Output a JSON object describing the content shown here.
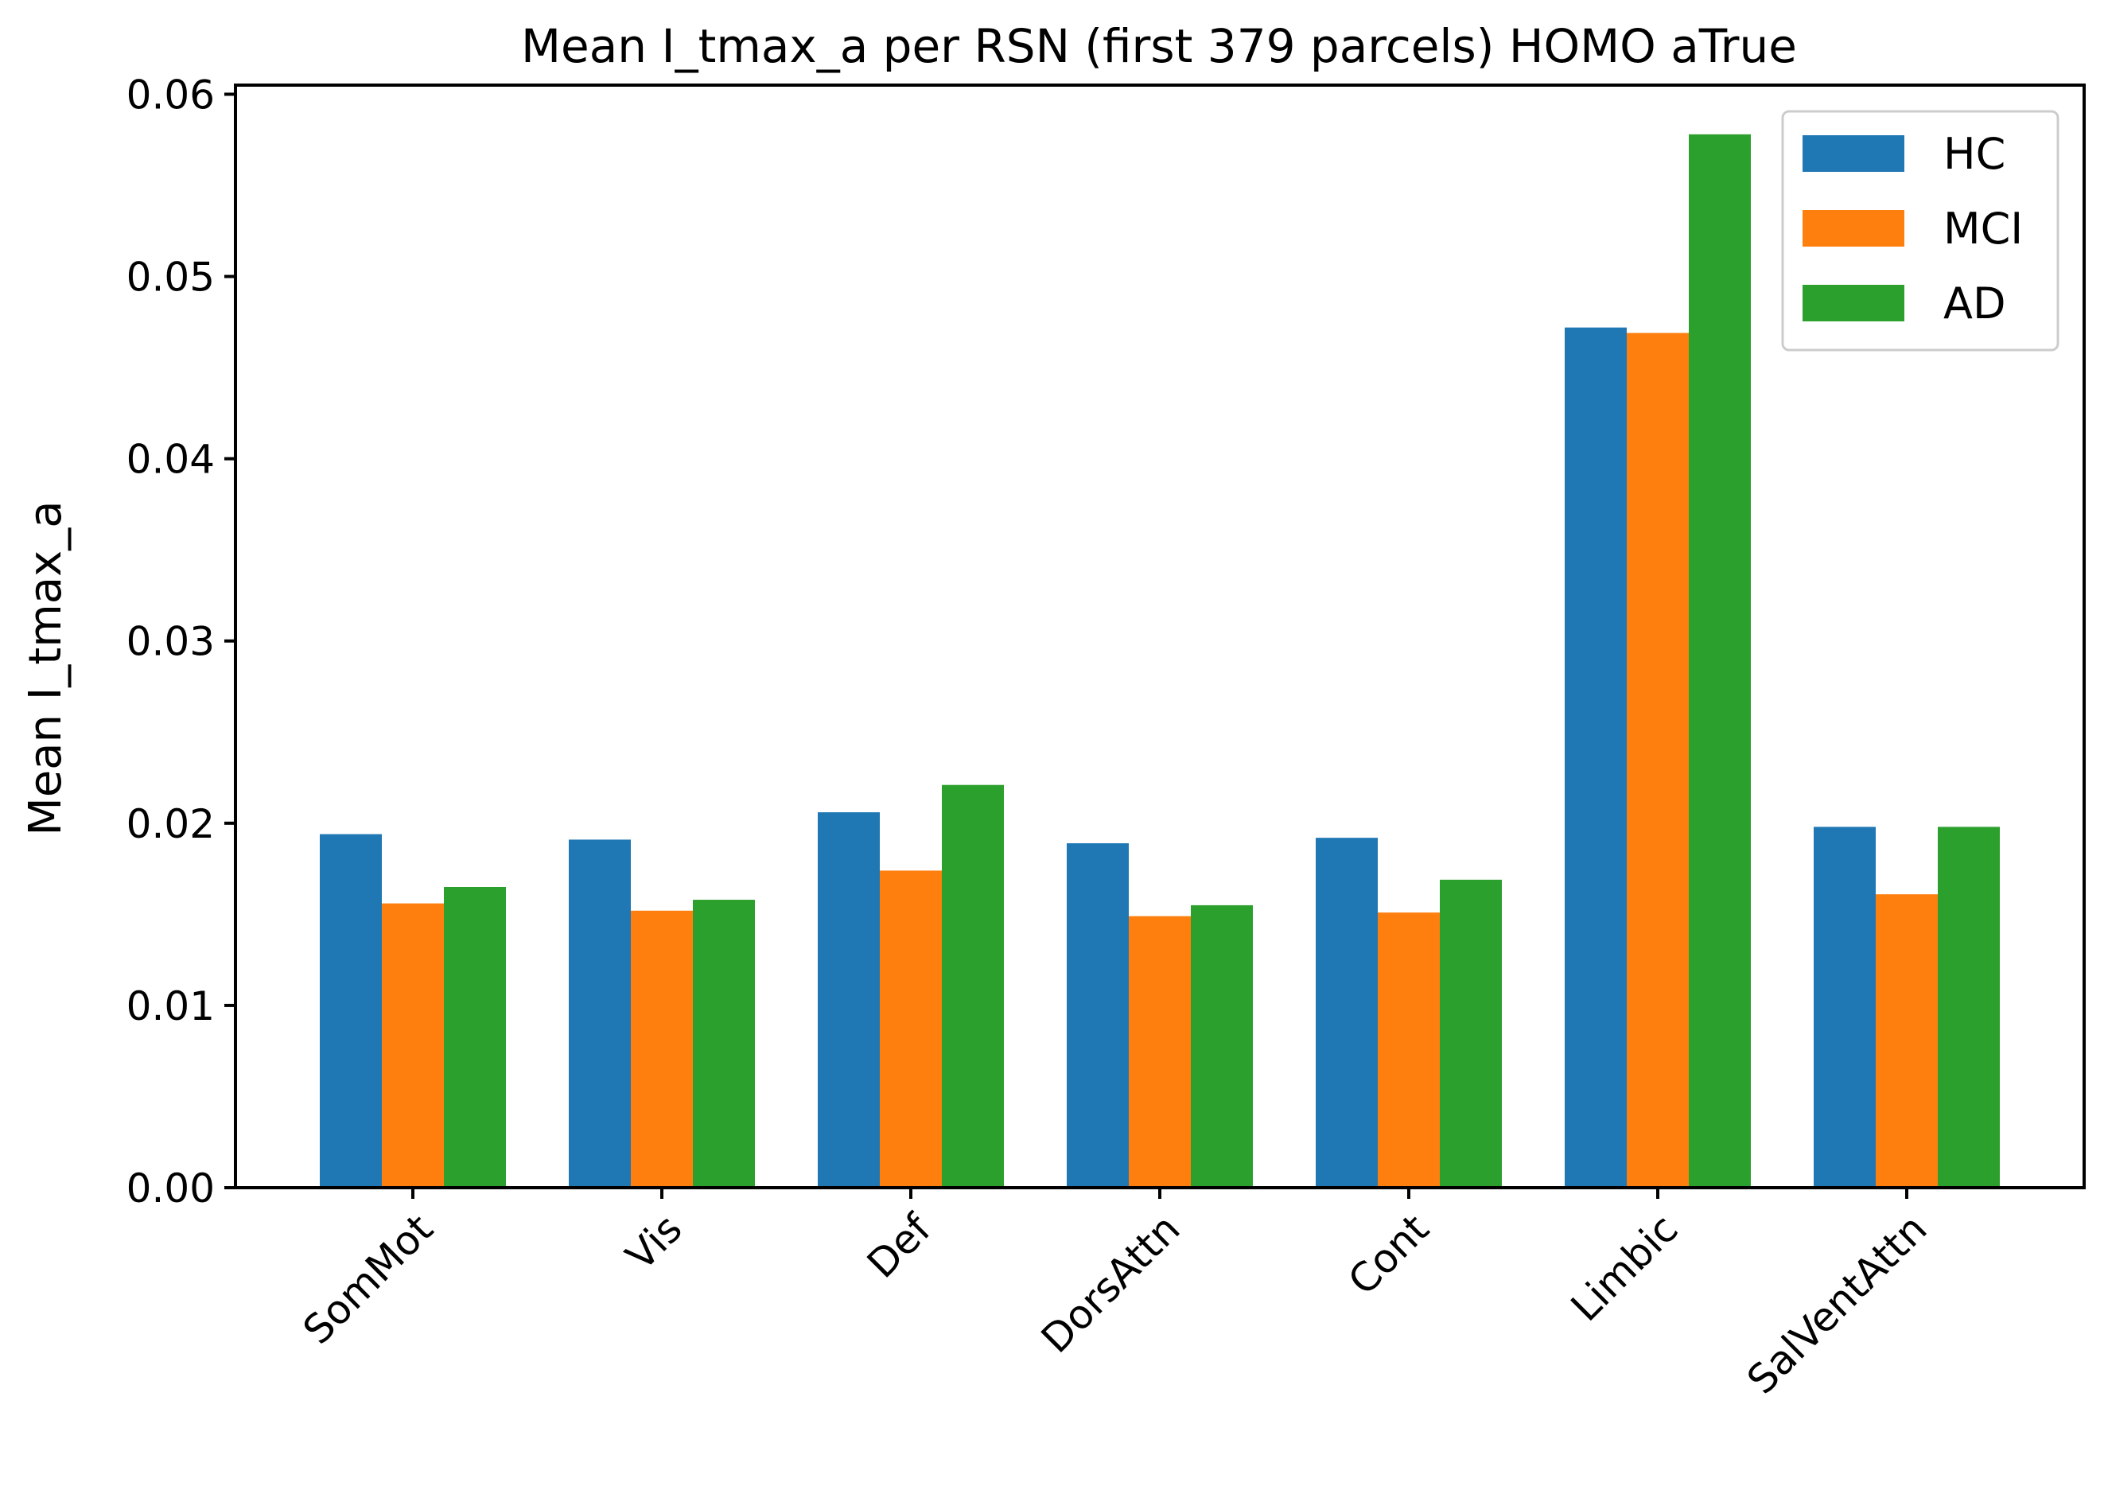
{
  "chart_data": {
    "type": "bar",
    "title": "Mean I_tmax_a per RSN (first 379 parcels) HOMO aTrue",
    "xlabel": "",
    "ylabel": "Mean I_tmax_a",
    "ylim": [
      0,
      0.0605
    ],
    "yticks": [
      0.0,
      0.01,
      0.02,
      0.03,
      0.04,
      0.05,
      0.06
    ],
    "ytick_labels": [
      "0.00",
      "0.01",
      "0.02",
      "0.03",
      "0.04",
      "0.05",
      "0.06"
    ],
    "categories": [
      "SomMot",
      "Vis",
      "Def",
      "DorsAttn",
      "Cont",
      "Limbic",
      "SalVentAttn"
    ],
    "series": [
      {
        "name": "HC",
        "color": "#1f77b4",
        "values": [
          0.0194,
          0.0191,
          0.0206,
          0.0189,
          0.0192,
          0.0472,
          0.0198
        ]
      },
      {
        "name": "MCI",
        "color": "#ff7f0e",
        "values": [
          0.0156,
          0.0152,
          0.0174,
          0.0149,
          0.0151,
          0.0469,
          0.0161
        ]
      },
      {
        "name": "AD",
        "color": "#2ca02c",
        "values": [
          0.0165,
          0.0158,
          0.0221,
          0.0155,
          0.0169,
          0.0578,
          0.0198
        ]
      }
    ],
    "legend": "top-right",
    "grid": false
  }
}
